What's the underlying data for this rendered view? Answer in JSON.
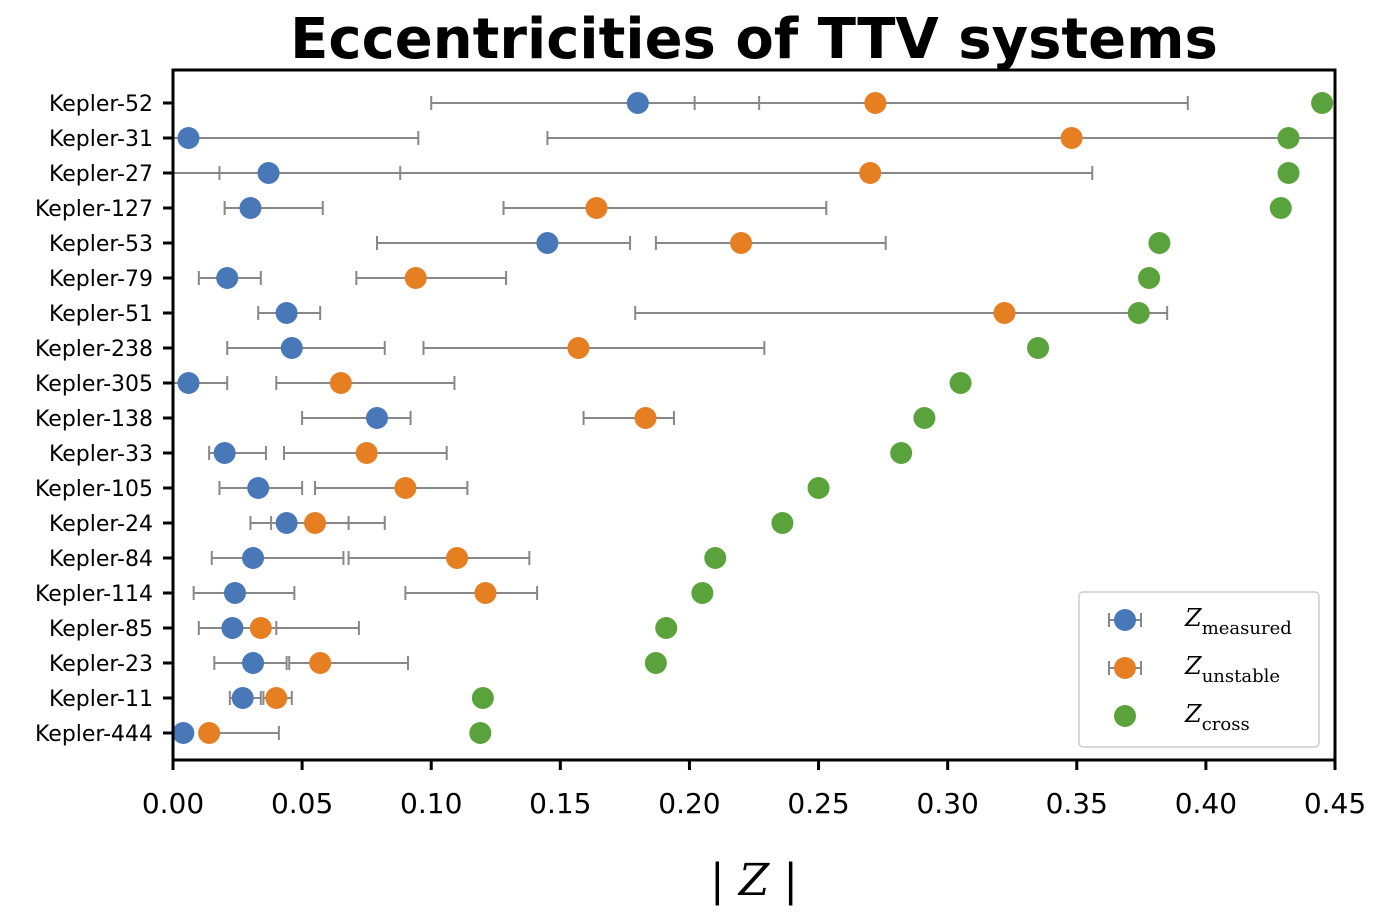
{
  "chart_data": {
    "type": "scatter",
    "title": "Eccentricities of TTV systems",
    "xlabel": "| Z |",
    "ylabel": "",
    "xlim": [
      0.0,
      0.45
    ],
    "xticks": [
      "0.00",
      "0.05",
      "0.10",
      "0.15",
      "0.20",
      "0.25",
      "0.30",
      "0.35",
      "0.40",
      "0.45"
    ],
    "xtick_values": [
      0.0,
      0.05,
      0.1,
      0.15,
      0.2,
      0.25,
      0.3,
      0.35,
      0.4,
      0.45
    ],
    "grid": false,
    "legend_position": "bottom-right",
    "categories": [
      "Kepler-52",
      "Kepler-31",
      "Kepler-27",
      "Kepler-127",
      "Kepler-53",
      "Kepler-79",
      "Kepler-51",
      "Kepler-238",
      "Kepler-305",
      "Kepler-138",
      "Kepler-33",
      "Kepler-105",
      "Kepler-24",
      "Kepler-84",
      "Kepler-114",
      "Kepler-85",
      "Kepler-23",
      "Kepler-11",
      "Kepler-444"
    ],
    "series": [
      {
        "name": "Z_measured",
        "legend_main": "Z",
        "legend_sub": "measured",
        "color": "#4878b8",
        "values": [
          0.18,
          0.006,
          0.037,
          0.03,
          0.145,
          0.021,
          0.044,
          0.046,
          0.006,
          0.079,
          0.02,
          0.033,
          0.044,
          0.031,
          0.024,
          0.023,
          0.031,
          0.027,
          0.004
        ],
        "err_low": [
          0.1,
          0.0,
          0.018,
          0.02,
          0.079,
          0.01,
          0.033,
          0.021,
          0.0,
          0.05,
          0.014,
          0.018,
          0.03,
          0.015,
          0.008,
          0.01,
          0.016,
          0.022,
          0.0
        ],
        "err_high": [
          0.227,
          0.095,
          0.088,
          0.058,
          0.177,
          0.034,
          0.057,
          0.082,
          0.021,
          0.092,
          0.036,
          0.05,
          0.068,
          0.066,
          0.047,
          0.04,
          0.044,
          0.034,
          0.004
        ]
      },
      {
        "name": "Z_unstable",
        "legend_main": "Z",
        "legend_sub": "unstable",
        "color": "#e67e22",
        "values": [
          0.272,
          0.348,
          0.27,
          0.164,
          0.22,
          0.094,
          0.322,
          0.157,
          0.065,
          0.183,
          0.075,
          0.09,
          0.055,
          0.11,
          0.121,
          0.034,
          0.057,
          0.04,
          0.014
        ],
        "err_low": [
          0.202,
          0.145,
          0.0,
          0.128,
          0.187,
          0.071,
          0.179,
          0.097,
          0.04,
          0.159,
          0.043,
          0.055,
          0.038,
          0.068,
          0.09,
          0.034,
          0.045,
          0.035,
          0.014
        ],
        "err_high": [
          0.393,
          0.45,
          0.356,
          0.253,
          0.276,
          0.129,
          0.385,
          0.229,
          0.109,
          0.194,
          0.106,
          0.114,
          0.082,
          0.138,
          0.141,
          0.072,
          0.091,
          0.046,
          0.041
        ]
      },
      {
        "name": "Z_cross",
        "legend_main": "Z",
        "legend_sub": "cross",
        "color": "#5aa33c",
        "values": [
          0.445,
          0.432,
          0.432,
          0.429,
          0.382,
          0.378,
          0.374,
          0.335,
          0.305,
          0.291,
          0.282,
          0.25,
          0.236,
          0.21,
          0.205,
          0.191,
          0.187,
          0.12,
          0.119
        ]
      }
    ]
  }
}
